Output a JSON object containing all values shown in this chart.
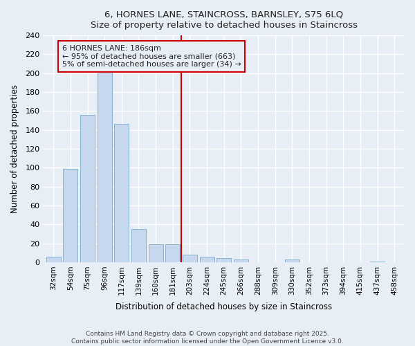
{
  "title": "6, HORNES LANE, STAINCROSS, BARNSLEY, S75 6LQ",
  "subtitle": "Size of property relative to detached houses in Staincross",
  "xlabel": "Distribution of detached houses by size in Staincross",
  "ylabel": "Number of detached properties",
  "bar_color": "#c5d8ed",
  "bar_edge_color": "#7aaac8",
  "categories": [
    "32sqm",
    "54sqm",
    "75sqm",
    "96sqm",
    "117sqm",
    "139sqm",
    "160sqm",
    "181sqm",
    "203sqm",
    "224sqm",
    "245sqm",
    "266sqm",
    "288sqm",
    "309sqm",
    "330sqm",
    "352sqm",
    "373sqm",
    "394sqm",
    "415sqm",
    "437sqm",
    "458sqm"
  ],
  "values": [
    6,
    99,
    156,
    202,
    146,
    35,
    19,
    19,
    8,
    6,
    4,
    3,
    0,
    0,
    3,
    0,
    0,
    0,
    0,
    1,
    0
  ],
  "vline_x": 7.5,
  "vline_color": "#cc0000",
  "annotation_text": "6 HORNES LANE: 186sqm\n← 95% of detached houses are smaller (663)\n5% of semi-detached houses are larger (34) →",
  "annotation_box_color": "#cc0000",
  "ylim": [
    0,
    240
  ],
  "yticks": [
    0,
    20,
    40,
    60,
    80,
    100,
    120,
    140,
    160,
    180,
    200,
    220,
    240
  ],
  "footer": "Contains HM Land Registry data © Crown copyright and database right 2025.\nContains public sector information licensed under the Open Government Licence v3.0.",
  "background_color": "#e8eef5",
  "grid_color": "#ffffff",
  "font_color": "#222222"
}
